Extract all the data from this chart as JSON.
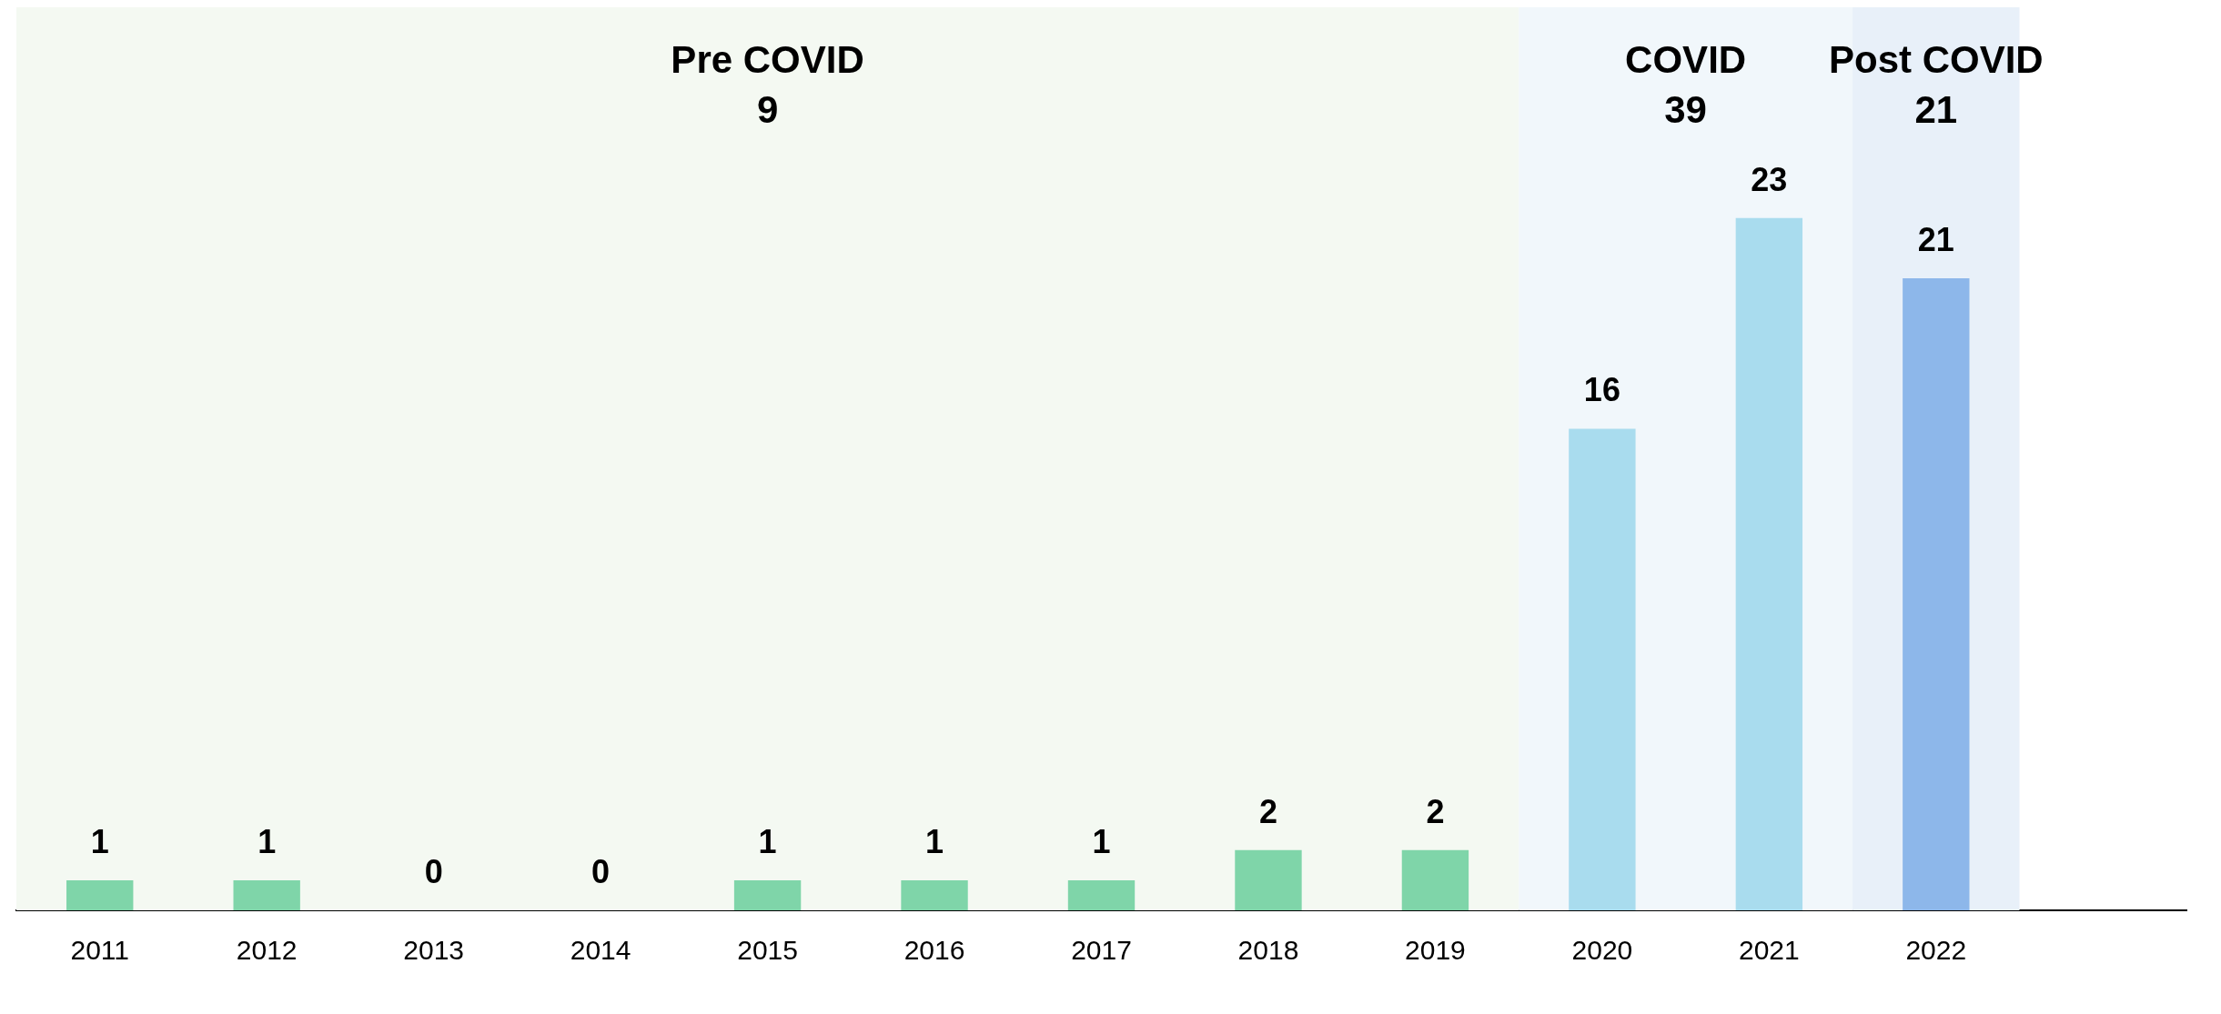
{
  "chart_data": {
    "type": "bar",
    "categories": [
      "2011",
      "2012",
      "2013",
      "2014",
      "2015",
      "2016",
      "2017",
      "2018",
      "2019",
      "2020",
      "2021",
      "2022",
      null
    ],
    "values": [
      1,
      1,
      0,
      0,
      1,
      1,
      1,
      2,
      2,
      16,
      23,
      21,
      null
    ],
    "colors": [
      "#7fd5a9",
      "#7fd5a9",
      "#7fd5a9",
      "#7fd5a9",
      "#7fd5a9",
      "#7fd5a9",
      "#7fd5a9",
      "#7fd5a9",
      "#7fd5a9",
      "#a9dcee",
      "#a9dcee",
      "#8db7ea",
      "#8db7ea"
    ],
    "ylim": [
      0,
      30
    ],
    "tick_labels": "x",
    "grid": false,
    "legend": false,
    "data_labels": true,
    "bands": [
      {
        "axis": "x",
        "from": "2011",
        "to": "2019",
        "label": "Pre COVID\n9",
        "color": "#f4f9f2"
      },
      {
        "axis": "x",
        "from": "2020",
        "to": "2021",
        "label": "COVID\n39",
        "color": "#f1f7fb"
      },
      {
        "axis": "x",
        "from": "2022",
        "to": "2022",
        "label": "Post COVID\n21",
        "color": "#e8f0f9"
      }
    ]
  }
}
